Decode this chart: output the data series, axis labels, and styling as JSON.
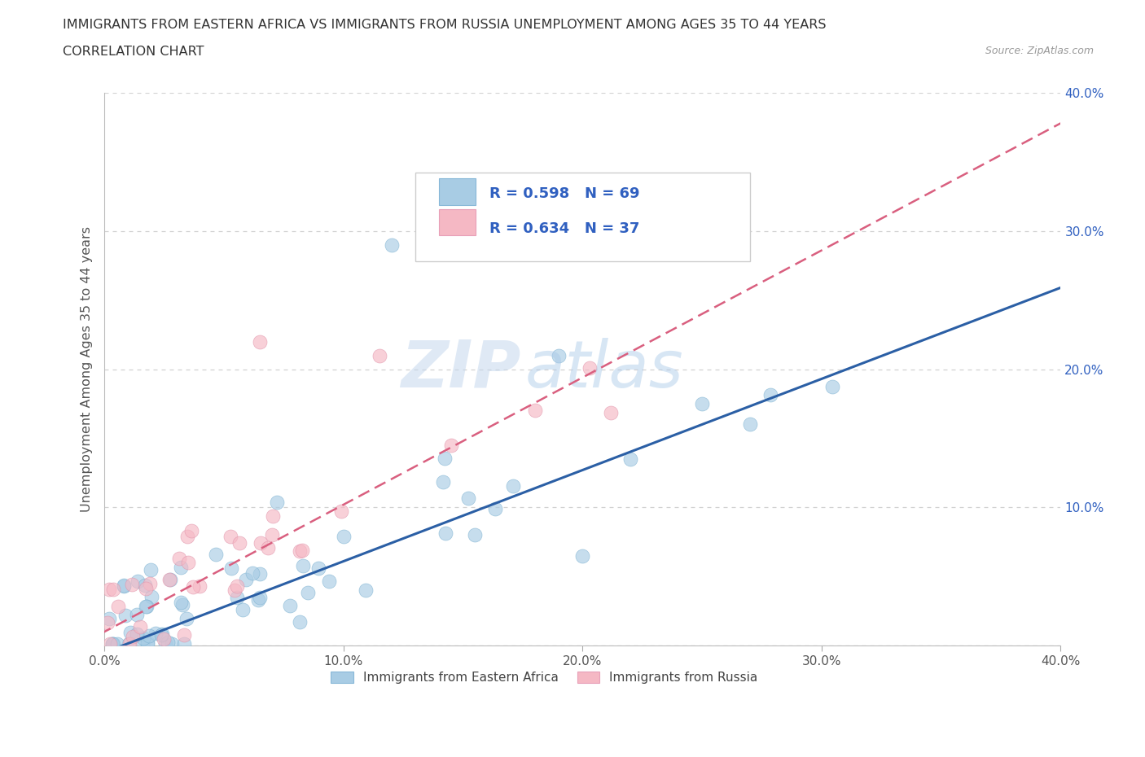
{
  "title_line1": "IMMIGRANTS FROM EASTERN AFRICA VS IMMIGRANTS FROM RUSSIA UNEMPLOYMENT AMONG AGES 35 TO 44 YEARS",
  "title_line2": "CORRELATION CHART",
  "source": "Source: ZipAtlas.com",
  "ylabel": "Unemployment Among Ages 35 to 44 years",
  "xlim": [
    0.0,
    0.4
  ],
  "ylim": [
    0.0,
    0.4
  ],
  "eastern_africa_color": "#a8cce4",
  "russia_color": "#f5b8c4",
  "eastern_africa_line_color": "#2b5fa5",
  "russia_line_color": "#d95f7f",
  "R_eastern": 0.598,
  "N_eastern": 69,
  "R_russia": 0.634,
  "N_russia": 37,
  "watermark_zip": "ZIP",
  "watermark_atlas": "atlas",
  "background_color": "#ffffff",
  "grid_color": "#cccccc",
  "legend_label_1": "Immigrants from Eastern Africa",
  "legend_label_2": "Immigrants from Russia",
  "text_blue": "#3060c0",
  "text_dark": "#222222",
  "title_color": "#333333",
  "ytick_color": "#3060c0",
  "xtick_color": "#555555"
}
